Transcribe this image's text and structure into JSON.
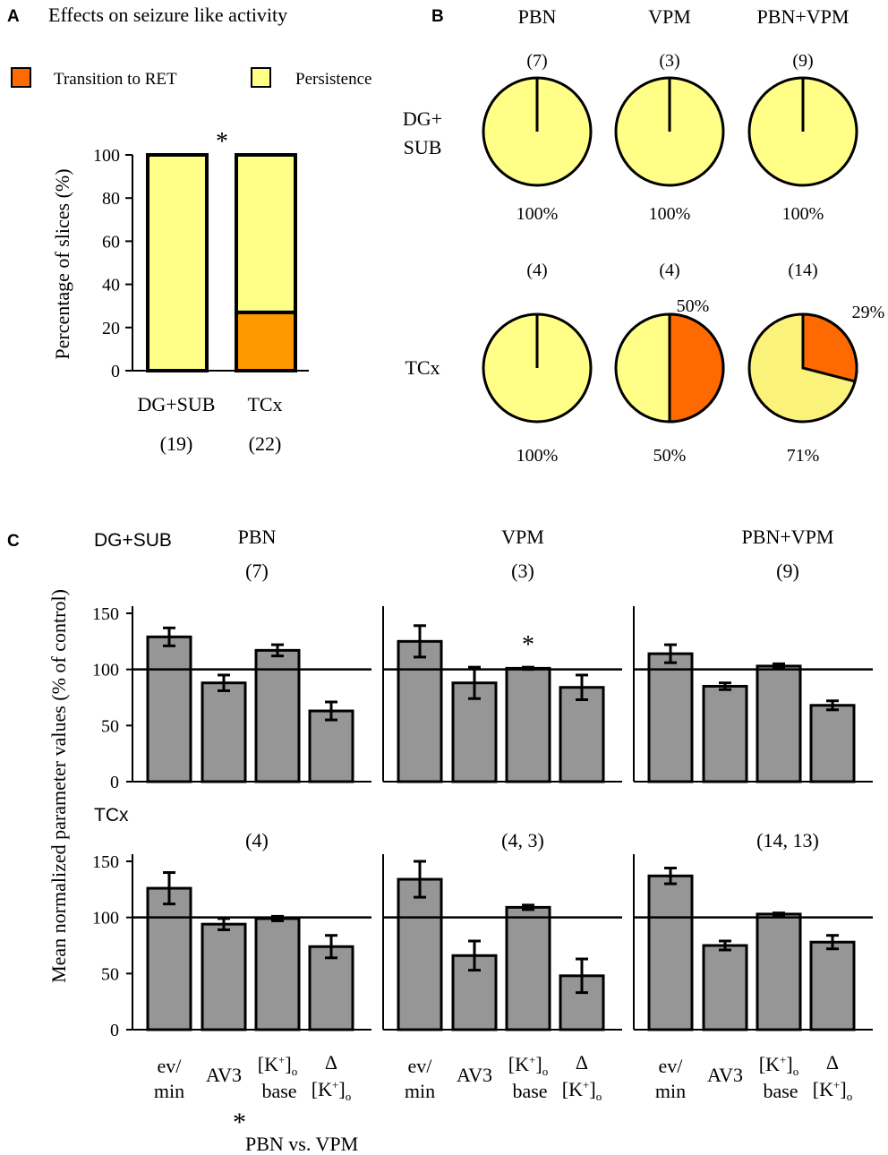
{
  "colors": {
    "persistence": "#FFFF88",
    "persistence_light": "#FAF27A",
    "transition_pie": "#FF6A00",
    "transition_bar": "#FF9900",
    "bar_gray": "#969696",
    "outline": "#000000"
  },
  "panelA": {
    "letter": "A",
    "title": "Effects on seizure like activity",
    "legend": {
      "transition": "Transition to RET",
      "persistence": "Persistence"
    },
    "significance": "*",
    "chart_data": {
      "type": "bar",
      "stacked": true,
      "categories": [
        "DG+SUB",
        "TCx"
      ],
      "counts": [
        "(19)",
        "(22)"
      ],
      "series": [
        {
          "name": "Transition to RET",
          "values": [
            0,
            27
          ]
        },
        {
          "name": "Persistence",
          "values": [
            100,
            73
          ]
        }
      ],
      "ylabel": "Percentage of slices (%)",
      "ylim": [
        0,
        100
      ],
      "yticks": [
        "0",
        "20",
        "40",
        "60",
        "80",
        "100"
      ]
    }
  },
  "panelB": {
    "letter": "B",
    "columns": [
      "PBN",
      "VPM",
      "PBN+VPM"
    ],
    "rows": [
      {
        "label_lines": [
          "DG+",
          "SUB"
        ],
        "counts": [
          "(7)",
          "(3)",
          "(9)"
        ],
        "bottom_labels": [
          "100%",
          "100%",
          "100%"
        ],
        "side_labels": [
          "",
          "",
          ""
        ]
      },
      {
        "label_lines": [
          "TCx"
        ],
        "counts": [
          "(4)",
          "(4)",
          "(14)"
        ],
        "bottom_labels": [
          "100%",
          "50%",
          "71%"
        ],
        "side_labels": [
          "",
          "50%",
          "29%"
        ]
      }
    ],
    "chart_data": {
      "type": "pie",
      "series_names": [
        "Transition to RET",
        "Persistence"
      ],
      "pies": [
        {
          "row": "DG+SUB",
          "col": "PBN",
          "n": 7,
          "values": [
            0,
            100
          ]
        },
        {
          "row": "DG+SUB",
          "col": "VPM",
          "n": 3,
          "values": [
            0,
            100
          ]
        },
        {
          "row": "DG+SUB",
          "col": "PBN+VPM",
          "n": 9,
          "values": [
            0,
            100
          ]
        },
        {
          "row": "TCx",
          "col": "PBN",
          "n": 4,
          "values": [
            0,
            100
          ]
        },
        {
          "row": "TCx",
          "col": "VPM",
          "n": 4,
          "values": [
            50,
            50
          ]
        },
        {
          "row": "TCx",
          "col": "PBN+VPM",
          "n": 14,
          "values": [
            29,
            71
          ]
        }
      ]
    }
  },
  "panelC": {
    "letter": "C",
    "ylabel": "Mean normalized parameter values (% of control)",
    "yticks": [
      "0",
      "50",
      "100",
      "150"
    ],
    "footnote_star": "*",
    "footnote_text": "PBN vs. VPM",
    "row_labels": [
      "DG+SUB",
      "TCx"
    ],
    "titles": [
      "PBN",
      "VPM",
      "PBN+VPM"
    ],
    "counts": [
      [
        "(7)",
        "(3)",
        "(9)"
      ],
      [
        "(4)",
        "(4, 3)",
        "(14, 13)"
      ]
    ],
    "xlabels": [
      {
        "top": "ev/",
        "bottom": "min"
      },
      {
        "top": "AV3",
        "bottom": ""
      },
      {
        "top": "[K",
        "sup": "+",
        "close": "]",
        "sub": "o",
        "bottom": "base"
      },
      {
        "top": "Δ",
        "bottom": "[K",
        "bsup": "+",
        "bclose": "]",
        "bsub": "o"
      }
    ],
    "chart_data": {
      "type": "bar",
      "categories": [
        "ev/min",
        "AV3",
        "[K+]o base",
        "Δ[K+]o"
      ],
      "ylim": [
        0,
        150
      ],
      "reference_line": 100,
      "series": [
        {
          "row": "DG+SUB",
          "condition": "PBN",
          "values": [
            129,
            88,
            117,
            63
          ],
          "errors": [
            8,
            7,
            5,
            8
          ]
        },
        {
          "row": "DG+SUB",
          "condition": "VPM",
          "values": [
            125,
            88,
            101,
            84
          ],
          "errors": [
            14,
            14,
            1,
            11
          ],
          "significance": [
            null,
            null,
            "*",
            null
          ]
        },
        {
          "row": "DG+SUB",
          "condition": "PBN+VPM",
          "values": [
            114,
            85,
            103,
            68
          ],
          "errors": [
            8,
            3,
            2,
            4
          ]
        },
        {
          "row": "TCx",
          "condition": "PBN",
          "values": [
            126,
            94,
            99,
            74
          ],
          "errors": [
            14,
            5,
            2,
            10
          ]
        },
        {
          "row": "TCx",
          "condition": "VPM",
          "values": [
            134,
            66,
            109,
            48
          ],
          "errors": [
            16,
            13,
            2,
            15
          ]
        },
        {
          "row": "TCx",
          "condition": "PBN+VPM",
          "values": [
            137,
            75,
            103,
            78
          ],
          "errors": [
            7,
            4,
            1,
            6
          ]
        }
      ]
    }
  }
}
